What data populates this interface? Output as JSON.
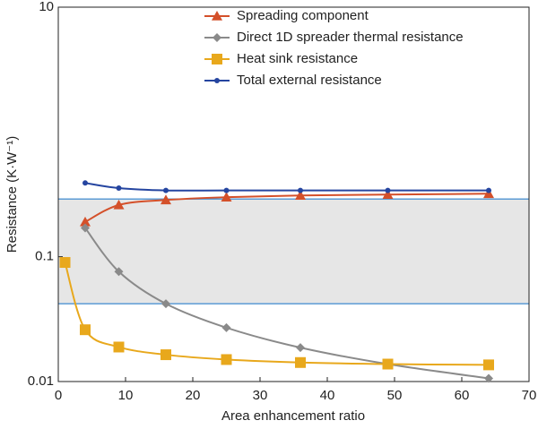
{
  "chart_data": {
    "type": "line",
    "x_label": "Area enhancement ratio",
    "y_label": "Resistance (K·W⁻¹)",
    "xlim": [
      0,
      70
    ],
    "xticks": [
      0,
      10,
      20,
      30,
      40,
      50,
      60,
      70
    ],
    "ylim": [
      0.01,
      10
    ],
    "yticks": [
      0.01,
      0.1,
      10
    ],
    "log_y": true,
    "legend": "top-right",
    "shaded_band": {
      "values": [
        0.042,
        0.29
      ],
      "color": "#e6e6e6",
      "line_color": "#5b9bd5"
    },
    "series": [
      {
        "name": "Spreading component",
        "color": "#d4502a",
        "marker": "triangle",
        "x": [
          4,
          9,
          16,
          25,
          36,
          49,
          64
        ],
        "values": [
          0.19,
          0.26,
          0.285,
          0.3,
          0.31,
          0.315,
          0.32
        ]
      },
      {
        "name": "Direct 1D spreader thermal resistance",
        "color": "#8a8a8a",
        "marker": "diamond",
        "x": [
          4,
          9,
          16,
          25,
          36,
          49,
          64
        ],
        "values": [
          0.17,
          0.076,
          0.042,
          0.027,
          0.0187,
          0.0138,
          0.0106
        ]
      },
      {
        "name": "Heat sink resistance",
        "color": "#e8a81c",
        "marker": "square",
        "x": [
          1,
          4,
          9,
          16,
          25,
          36,
          49,
          64
        ],
        "values": [
          0.09,
          0.026,
          0.0189,
          0.0164,
          0.015,
          0.0142,
          0.0138,
          0.0136
        ]
      },
      {
        "name": "Total external resistance",
        "color": "#2545a0",
        "marker": "circle",
        "x": [
          4,
          9,
          16,
          25,
          36,
          49,
          64
        ],
        "values": [
          0.39,
          0.355,
          0.34,
          0.34,
          0.34,
          0.34,
          0.34
        ]
      }
    ]
  }
}
